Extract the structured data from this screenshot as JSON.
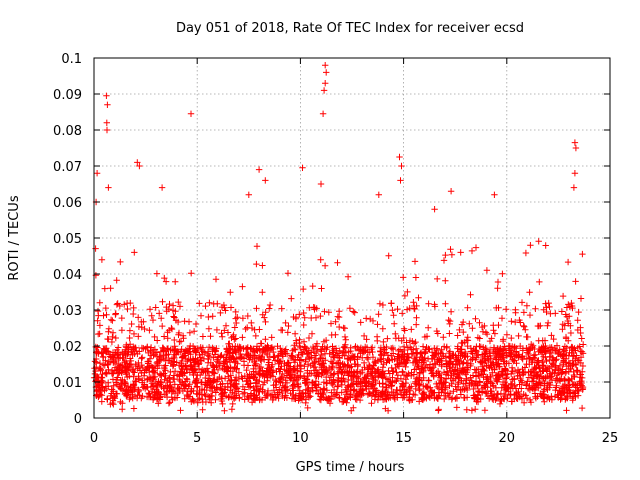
{
  "chart_data": {
    "type": "scatter",
    "title": "Day 051 of 2018, Rate Of TEC Index for receiver ecsd",
    "xlabel": "GPS time / hours",
    "ylabel": "ROTI / TECUs",
    "xlim": [
      0,
      25
    ],
    "ylim": [
      0,
      0.1
    ],
    "xticks": [
      0,
      5,
      10,
      15,
      20,
      25
    ],
    "xtick_labels": [
      "0",
      "5",
      "10",
      "15",
      "20",
      "25"
    ],
    "yticks": [
      0,
      0.01,
      0.02,
      0.03,
      0.04,
      0.05,
      0.06,
      0.07,
      0.08,
      0.09,
      0.1
    ],
    "ytick_labels": [
      "0",
      "0.01",
      "0.02",
      "0.03",
      "0.04",
      "0.05",
      "0.06",
      "0.07",
      "0.08",
      "0.09",
      "0.1"
    ],
    "grid": true,
    "marker": "+",
    "series_color": "#ff0000",
    "data_extent_hours": [
      0,
      23.7
    ],
    "baseline_band": [
      0.005,
      0.02
    ],
    "peaks": [
      {
        "x": 0.6,
        "y": 0.0895
      },
      {
        "x": 0.65,
        "y": 0.087
      },
      {
        "x": 0.62,
        "y": 0.082
      },
      {
        "x": 0.63,
        "y": 0.08
      },
      {
        "x": 0.15,
        "y": 0.068
      },
      {
        "x": 0.7,
        "y": 0.064
      },
      {
        "x": 0.1,
        "y": 0.06
      },
      {
        "x": 2.1,
        "y": 0.071
      },
      {
        "x": 2.2,
        "y": 0.07
      },
      {
        "x": 3.3,
        "y": 0.064
      },
      {
        "x": 4.7,
        "y": 0.0845
      },
      {
        "x": 7.5,
        "y": 0.062
      },
      {
        "x": 8.0,
        "y": 0.069
      },
      {
        "x": 8.3,
        "y": 0.066
      },
      {
        "x": 10.1,
        "y": 0.0695
      },
      {
        "x": 11.2,
        "y": 0.098
      },
      {
        "x": 11.25,
        "y": 0.096
      },
      {
        "x": 11.2,
        "y": 0.093
      },
      {
        "x": 11.15,
        "y": 0.091
      },
      {
        "x": 11.1,
        "y": 0.0845
      },
      {
        "x": 11.0,
        "y": 0.065
      },
      {
        "x": 13.8,
        "y": 0.062
      },
      {
        "x": 14.8,
        "y": 0.0725
      },
      {
        "x": 14.9,
        "y": 0.07
      },
      {
        "x": 14.85,
        "y": 0.066
      },
      {
        "x": 16.5,
        "y": 0.058
      },
      {
        "x": 17.3,
        "y": 0.063
      },
      {
        "x": 19.4,
        "y": 0.062
      },
      {
        "x": 23.3,
        "y": 0.0765
      },
      {
        "x": 23.35,
        "y": 0.075
      },
      {
        "x": 23.3,
        "y": 0.068
      },
      {
        "x": 23.25,
        "y": 0.064
      }
    ]
  }
}
